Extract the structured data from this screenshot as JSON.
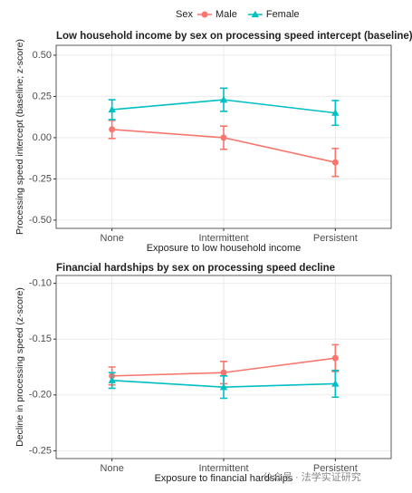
{
  "legend_title": "Sex",
  "watermark": "公众号 · 法学实证研究",
  "chart_data": [
    {
      "type": "line",
      "title": "Low household income by sex on processing speed intercept (baseline)",
      "x_label": "Exposure to low household income",
      "y_label": "Processing speed intercept (baseline; z-score)",
      "categories": [
        "None",
        "Intermittent",
        "Persistent"
      ],
      "series": [
        {
          "name": "Male",
          "color": "#F8766D",
          "marker": "circle",
          "values": [
            0.05,
            0.0,
            -0.15
          ],
          "errors": [
            0.055,
            0.07,
            0.085
          ]
        },
        {
          "name": "Female",
          "color": "#00BFC4",
          "marker": "triangle",
          "values": [
            0.17,
            0.23,
            0.15
          ],
          "errors": [
            0.06,
            0.07,
            0.075
          ]
        }
      ],
      "ylim": [
        -0.55,
        0.56
      ],
      "yticks": [
        {
          "value": -0.5,
          "label": "-0.50"
        },
        {
          "value": -0.25,
          "label": "-0.25"
        },
        {
          "value": 0,
          "label": "0.00"
        },
        {
          "value": 0.25,
          "label": "0.25"
        },
        {
          "value": 0.5,
          "label": "0.50"
        }
      ],
      "grid": true
    },
    {
      "type": "line",
      "title": "Financial hardships by sex on processing speed decline",
      "x_label": "Exposure to financial hardships",
      "y_label": "Decline in processing speed (z-score)",
      "categories": [
        "None",
        "Intermittent",
        "Persistent"
      ],
      "series": [
        {
          "name": "Male",
          "color": "#F8766D",
          "marker": "circle",
          "values": [
            -0.183,
            -0.18,
            -0.167
          ],
          "errors": [
            0.008,
            0.01,
            0.012
          ]
        },
        {
          "name": "Female",
          "color": "#00BFC4",
          "marker": "triangle",
          "values": [
            -0.187,
            -0.193,
            -0.19
          ],
          "errors": [
            0.007,
            0.01,
            0.012
          ]
        }
      ],
      "ylim": [
        -0.257,
        -0.093
      ],
      "yticks": [
        {
          "value": -0.25,
          "label": "-0.25"
        },
        {
          "value": -0.2,
          "label": "-0.20"
        },
        {
          "value": -0.15,
          "label": "-0.15"
        },
        {
          "value": -0.1,
          "label": "-0.10"
        }
      ],
      "grid": true
    }
  ]
}
